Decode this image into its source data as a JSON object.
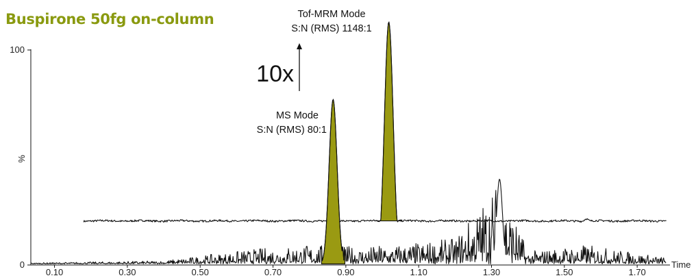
{
  "chart_data": {
    "type": "line",
    "title": "Buspirone 50fg on-column",
    "xlabel": "Time",
    "ylabel": "%",
    "xlim": [
      0.035,
      1.79
    ],
    "ylim": [
      0,
      100
    ],
    "x_ticks": [
      "0.10",
      "0.30",
      "0.50",
      "0.70",
      "0.90",
      "1.10",
      "1.30",
      "1.50",
      "1.70"
    ],
    "y_ticks": [
      "0",
      "100"
    ],
    "annotations": {
      "tof_mode": "Tof-MRM Mode",
      "tof_sn": "S:N (RMS) 1148:1",
      "ms_mode": "MS Mode",
      "ms_sn": "S:N (RMS) 80:1",
      "gain": "10x"
    },
    "series": [
      {
        "color": "#111111",
        "peak_fill": "#9a9a12",
        "baseline": 20.5,
        "x_start": 0.18,
        "x_end": 1.78,
        "peak": {
          "x": 1.018,
          "height": 113,
          "width": 0.012
        },
        "points": [
          [
            0.18,
            20.5
          ],
          [
            0.4,
            20.4
          ],
          [
            0.62,
            20.6
          ],
          [
            0.85,
            20.5
          ],
          [
            0.98,
            20.4
          ],
          [
            1.018,
            113
          ],
          [
            1.05,
            20.5
          ],
          [
            1.25,
            20.8
          ],
          [
            1.45,
            20.8
          ],
          [
            1.55,
            21.0
          ],
          [
            1.78,
            20.5
          ]
        ]
      },
      {
        "color": "#111111",
        "peak_fill": "#9a9a12",
        "baseline": 0.5,
        "x_start": 0.035,
        "x_end": 1.78,
        "peak": {
          "x": 0.865,
          "height": 77,
          "width": 0.011
        },
        "points": [
          [
            0.035,
            0.5
          ],
          [
            0.4,
            1.5
          ],
          [
            0.6,
            6
          ],
          [
            0.7,
            8
          ],
          [
            0.8,
            9
          ],
          [
            0.865,
            77
          ],
          [
            0.95,
            8
          ],
          [
            1.1,
            10
          ],
          [
            1.2,
            12
          ],
          [
            1.322,
            40
          ],
          [
            1.4,
            6
          ],
          [
            1.56,
            9
          ],
          [
            1.78,
            3
          ]
        ]
      }
    ]
  }
}
